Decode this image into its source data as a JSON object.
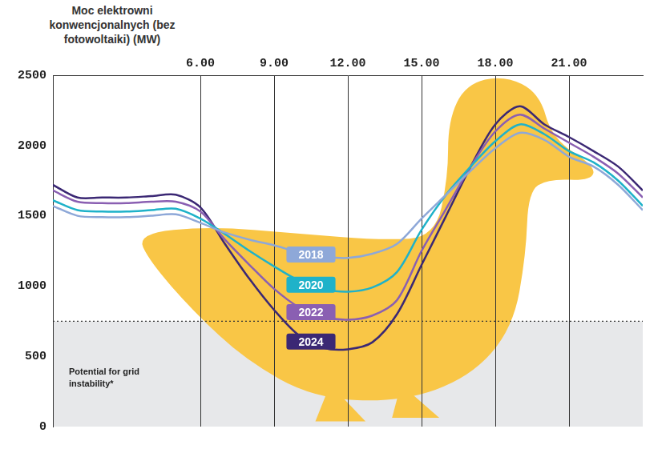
{
  "chart_data": {
    "type": "line",
    "y_axis_title": "Moc elektrowni konwencjonalnych (bez fotowoltaiki) (MW)",
    "x": [
      0,
      1,
      2,
      3,
      4,
      5,
      6,
      7,
      8,
      9,
      10,
      11,
      12,
      13,
      14,
      15,
      16,
      17,
      18,
      19,
      20,
      21,
      22,
      23,
      24
    ],
    "xlim": [
      0,
      24
    ],
    "xticks": [
      {
        "value": 6,
        "label": "6.00"
      },
      {
        "value": 9,
        "label": "9.00"
      },
      {
        "value": 12,
        "label": "12.00"
      },
      {
        "value": 15,
        "label": "15.00"
      },
      {
        "value": 18,
        "label": "18.00"
      },
      {
        "value": 21,
        "label": "21.00"
      }
    ],
    "ylim": [
      0,
      2500
    ],
    "yticks": [
      0,
      500,
      1000,
      1500,
      2000,
      2500
    ],
    "grid": "x",
    "instability_zone": {
      "ymax": 750,
      "label": "Potential for grid instability*"
    },
    "series": [
      {
        "name": "2018",
        "color": "#8ea8d8",
        "values": [
          1570,
          1500,
          1490,
          1490,
          1500,
          1510,
          1450,
          1380,
          1330,
          1290,
          1240,
          1210,
          1200,
          1230,
          1300,
          1480,
          1650,
          1820,
          1980,
          2090,
          2040,
          1920,
          1850,
          1720,
          1540
        ]
      },
      {
        "name": "2020",
        "color": "#1fb2c9",
        "values": [
          1610,
          1540,
          1530,
          1530,
          1540,
          1550,
          1480,
          1370,
          1250,
          1140,
          1040,
          980,
          960,
          990,
          1100,
          1400,
          1650,
          1850,
          2030,
          2150,
          2080,
          1960,
          1880,
          1750,
          1570
        ]
      },
      {
        "name": "2022",
        "color": "#8a5fb2",
        "values": [
          1680,
          1600,
          1590,
          1590,
          1600,
          1600,
          1530,
          1330,
          1150,
          980,
          850,
          780,
          760,
          790,
          900,
          1250,
          1550,
          1850,
          2100,
          2220,
          2120,
          2020,
          1920,
          1800,
          1630
        ]
      },
      {
        "name": "2024",
        "color": "#3b2874",
        "values": [
          1720,
          1630,
          1630,
          1630,
          1640,
          1650,
          1560,
          1300,
          1050,
          830,
          650,
          560,
          550,
          600,
          800,
          1150,
          1500,
          1850,
          2150,
          2280,
          2150,
          2060,
          1960,
          1850,
          1680
        ]
      }
    ]
  }
}
